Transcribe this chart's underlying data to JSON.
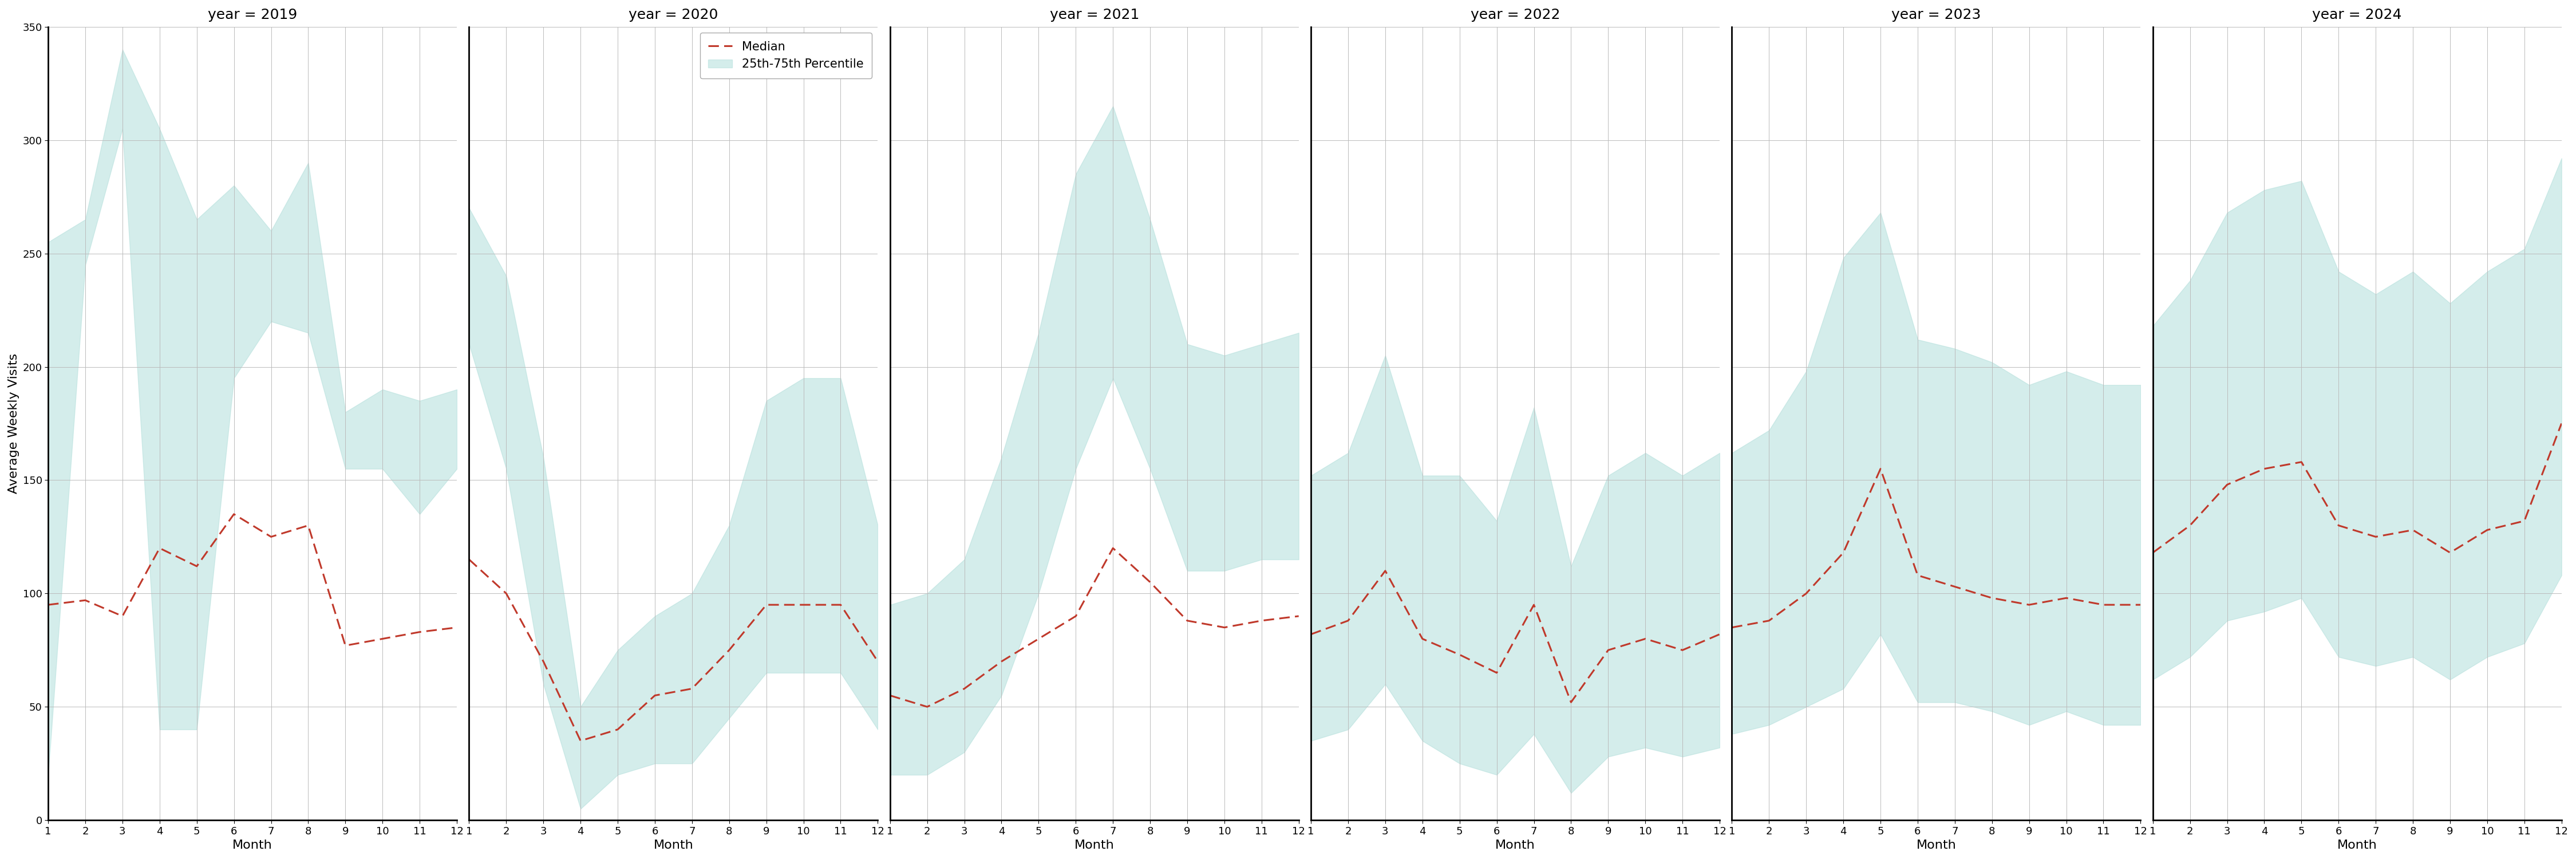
{
  "years": [
    2019,
    2020,
    2021,
    2022,
    2023,
    2024
  ],
  "months": [
    1,
    2,
    3,
    4,
    5,
    6,
    7,
    8,
    9,
    10,
    11,
    12
  ],
  "median": {
    "2019": [
      95,
      97,
      90,
      120,
      112,
      135,
      125,
      130,
      77,
      80,
      83,
      85
    ],
    "2020": [
      115,
      100,
      70,
      35,
      40,
      55,
      58,
      75,
      95,
      95,
      95,
      70
    ],
    "2021": [
      55,
      50,
      58,
      70,
      80,
      90,
      120,
      105,
      88,
      85,
      88,
      90
    ],
    "2022": [
      82,
      88,
      110,
      80,
      73,
      65,
      95,
      52,
      75,
      80,
      75,
      82
    ],
    "2023": [
      85,
      88,
      100,
      118,
      155,
      108,
      103,
      98,
      95,
      98,
      95,
      95
    ],
    "2024": [
      118,
      130,
      148,
      155,
      158,
      130,
      125,
      128,
      118,
      128,
      132,
      175
    ]
  },
  "p25": {
    "2019": [
      20,
      245,
      305,
      40,
      40,
      195,
      220,
      215,
      155,
      155,
      135,
      155
    ],
    "2020": [
      210,
      155,
      60,
      5,
      20,
      25,
      25,
      45,
      65,
      65,
      65,
      40
    ],
    "2021": [
      20,
      20,
      30,
      55,
      100,
      155,
      195,
      155,
      110,
      110,
      115,
      115
    ],
    "2022": [
      35,
      40,
      60,
      35,
      25,
      20,
      38,
      12,
      28,
      32,
      28,
      32
    ],
    "2023": [
      38,
      42,
      50,
      58,
      82,
      52,
      52,
      48,
      42,
      48,
      42,
      42
    ],
    "2024": [
      62,
      72,
      88,
      92,
      98,
      72,
      68,
      72,
      62,
      72,
      78,
      108
    ]
  },
  "p75": {
    "2019": [
      255,
      265,
      340,
      305,
      265,
      280,
      260,
      290,
      180,
      190,
      185,
      190
    ],
    "2020": [
      270,
      240,
      160,
      50,
      75,
      90,
      100,
      130,
      185,
      195,
      195,
      130
    ],
    "2021": [
      95,
      100,
      115,
      160,
      215,
      285,
      315,
      265,
      210,
      205,
      210,
      215
    ],
    "2022": [
      152,
      162,
      205,
      152,
      152,
      132,
      182,
      112,
      152,
      162,
      152,
      162
    ],
    "2023": [
      162,
      172,
      198,
      248,
      268,
      212,
      208,
      202,
      192,
      198,
      192,
      192
    ],
    "2024": [
      218,
      238,
      268,
      278,
      282,
      242,
      232,
      242,
      228,
      242,
      252,
      292
    ]
  },
  "fill_color": "#b2dfdb",
  "fill_alpha": 0.55,
  "line_color": "#c0392b",
  "line_width": 2.2,
  "ylim": [
    0,
    350
  ],
  "yticks": [
    0,
    50,
    100,
    150,
    200,
    250,
    300,
    350
  ],
  "ylabel": "Average Weekly Visits",
  "xlabel": "Month",
  "grid_color": "#bbbbbb",
  "title_fontsize": 18,
  "label_fontsize": 16,
  "tick_fontsize": 13,
  "legend_fontsize": 15,
  "legend_panel": 1
}
